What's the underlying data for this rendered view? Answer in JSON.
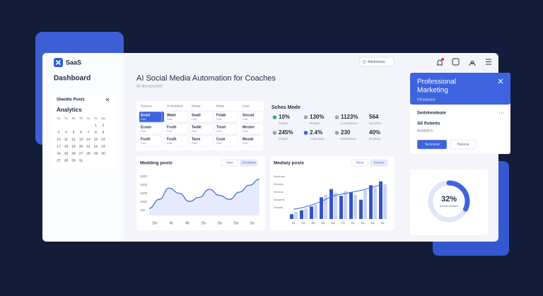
{
  "brand": "SaaS",
  "nav_title": "Dashboard",
  "search": "Adetobway",
  "header": {
    "title": "AI Social Media Automation for Coaches",
    "subtitle": "Ol docopoches"
  },
  "calendar": {
    "title": "Sheidte Posts",
    "subtitle": "Analytics",
    "weekdays": [
      "M",
      "Tu",
      "W",
      "Th",
      "Tu",
      "Fr",
      "Sa"
    ],
    "weeks": [
      [
        null,
        null,
        null,
        null,
        null,
        1,
        2
      ],
      [
        3,
        4,
        5,
        6,
        7,
        8,
        9
      ],
      [
        10,
        11,
        12,
        13,
        14,
        15,
        16
      ],
      [
        17,
        18,
        19,
        20,
        21,
        22,
        23
      ],
      [
        24,
        25,
        26,
        27,
        28,
        29,
        30
      ],
      [
        27,
        28,
        30,
        31,
        null,
        null,
        null
      ]
    ]
  },
  "table": {
    "columns": [
      "Sosoce",
      "Scheduled",
      "Wtras",
      "Wote",
      "User"
    ],
    "rows": [
      [
        [
          "Scoel",
          "Fstd"
        ],
        [
          "Wake",
          "Fstd"
        ],
        [
          "Swall",
          "Fstd"
        ],
        [
          "Fstab",
          "Fstd"
        ],
        [
          "Socsal",
          "Fstd"
        ]
      ],
      [
        [
          "Ecoan",
          "Fstd"
        ],
        [
          "Fosth",
          "Fstd"
        ],
        [
          "Twdle",
          "Fstd"
        ],
        [
          "Tmsh",
          "Fstd"
        ],
        [
          "Mestee",
          "Fstd"
        ]
      ],
      [
        [
          "Fosth",
          "Fstd"
        ],
        [
          "Fosth",
          "Fstd"
        ],
        [
          "Twoe",
          "Fstd"
        ],
        [
          "Cosk",
          "Fstd"
        ],
        [
          "Mosde",
          "Fstd"
        ]
      ]
    ]
  },
  "stats": {
    "title": "Sches Mode",
    "items": [
      {
        "value": "10%",
        "label": "Rotate",
        "color": "#34b36b"
      },
      {
        "value": "130%",
        "label": "Wsean",
        "color": "#9aa3b5"
      },
      {
        "value": "1123%",
        "label": "Cosopteano",
        "color": "#9aa3b5"
      },
      {
        "value": "564",
        "label": "Socchee",
        "color": null
      },
      {
        "value": "245%",
        "label": "Fstsen",
        "color": "#9aa3b5"
      },
      {
        "value": "2.4%",
        "label": "Cossmiste",
        "color": "#3d63e0"
      },
      {
        "value": "230",
        "label": "Retenence",
        "color": "#9aa3b5"
      },
      {
        "value": "40%",
        "label": "Rostess",
        "color": null
      }
    ]
  },
  "line_chart": {
    "title": "Medding posts",
    "buttons": [
      "New",
      "Schddoze"
    ],
    "y_labels": [
      "1000",
      "1000",
      "1000",
      "1000",
      "100"
    ],
    "x_labels": [
      "Dn",
      "Nl",
      "Mt",
      "Dn",
      "Dn",
      "Oo",
      "Sn"
    ],
    "values": [
      18,
      40,
      68,
      55,
      35,
      45,
      65,
      50,
      40,
      58,
      75,
      90
    ],
    "ylim": [
      0,
      100
    ],
    "color": "#4a6ee0"
  },
  "bar_chart": {
    "title": "Medialy posts",
    "buttons": [
      "Nvoo",
      "Seocsn"
    ],
    "y_labels": [
      "Senenes",
      "Sensete",
      "Senees",
      "Seusbes",
      "Seesbs"
    ],
    "x_labels": [
      "11",
      "12",
      "31",
      "21",
      "12",
      "71",
      "11",
      "21",
      "15",
      "11"
    ],
    "series": [
      {
        "name": "dark",
        "color": "#3553c7",
        "values": [
          10,
          18,
          26,
          45,
          62,
          48,
          55,
          40,
          70,
          78
        ]
      },
      {
        "name": "light",
        "color": "#c9d4f3",
        "values": [
          15,
          22,
          30,
          50,
          55,
          58,
          50,
          60,
          65,
          72
        ]
      }
    ],
    "ylim": [
      0,
      85
    ],
    "trend": [
      20,
      24,
      30,
      38,
      48,
      52,
      56,
      60,
      66,
      72
    ]
  },
  "card": {
    "title_lines": [
      "Professional",
      "Marketing"
    ],
    "subtitle": "Decpiquaot",
    "section": "Sedokendeate",
    "value": "S0 flvlents",
    "label": "Analytics",
    "buttons": [
      "Tacrecend",
      "Relenoe"
    ]
  },
  "donut": {
    "value": 32,
    "value_label": "32%",
    "label": "Exeecsoaset",
    "color": "#3d63e0"
  }
}
